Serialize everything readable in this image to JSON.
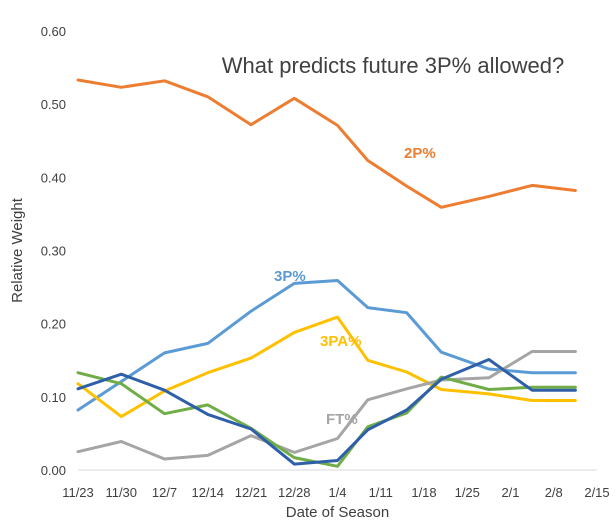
{
  "chart_data": {
    "type": "line",
    "title": "What predicts future 3P% allowed?",
    "xlabel": "Date of Season",
    "ylabel": "Relative Weight",
    "x": [
      "11/23",
      "11/30",
      "12/7",
      "12/14",
      "12/21",
      "12/28",
      "1/4",
      "1/11",
      "1/18",
      "1/25",
      "2/1",
      "2/8",
      "2/15"
    ],
    "ylim": [
      0,
      0.6
    ],
    "yticks": [
      "0.00",
      "0.10",
      "0.20",
      "0.30",
      "0.40",
      "0.50",
      "0.60"
    ],
    "grid": false,
    "series": [
      {
        "name": "2P%",
        "color": "#ED7D31",
        "x": [
          0,
          1,
          2,
          3,
          4,
          5,
          6,
          6.7,
          7.6,
          8.4,
          9.5,
          10.5,
          11.5
        ],
        "values": [
          0.533,
          0.523,
          0.532,
          0.51,
          0.472,
          0.508,
          0.471,
          0.423,
          0.388,
          0.359,
          0.374,
          0.389,
          0.382
        ]
      },
      {
        "name": "3P%",
        "color": "#5B9BD5",
        "x": [
          0,
          1,
          2,
          3,
          4,
          5,
          6,
          6.7,
          7.6,
          8.4,
          9.5,
          10.5,
          11.5
        ],
        "values": [
          0.082,
          0.121,
          0.16,
          0.173,
          0.217,
          0.255,
          0.259,
          0.222,
          0.215,
          0.161,
          0.138,
          0.133,
          0.133
        ]
      },
      {
        "name": "3PA%",
        "color": "#FFC000",
        "x": [
          0,
          1,
          2,
          3,
          4,
          5,
          6,
          6.7,
          7.6,
          8.4,
          9.5,
          10.5,
          11.5
        ],
        "values": [
          0.118,
          0.073,
          0.108,
          0.133,
          0.153,
          0.188,
          0.209,
          0.15,
          0.134,
          0.11,
          0.104,
          0.095,
          0.095
        ]
      },
      {
        "name": "FT%",
        "color": "#A5A5A5",
        "x": [
          0,
          1,
          2,
          3,
          4,
          5,
          6,
          6.7,
          7.6,
          8.4,
          9.5,
          10.5,
          11.5
        ],
        "values": [
          0.025,
          0.039,
          0.015,
          0.02,
          0.047,
          0.024,
          0.043,
          0.096,
          0.111,
          0.123,
          0.126,
          0.162,
          0.162
        ]
      },
      {
        "name": "",
        "color": "#70AD47",
        "x": [
          0,
          1,
          2,
          3,
          4,
          5,
          6,
          6.7,
          7.6,
          8.4,
          9.5,
          10.5,
          11.5
        ],
        "values": [
          0.133,
          0.118,
          0.077,
          0.089,
          0.057,
          0.017,
          0.005,
          0.059,
          0.078,
          0.127,
          0.11,
          0.113,
          0.113
        ]
      },
      {
        "name": "",
        "color": "#2E5FA8",
        "x": [
          0,
          1,
          2,
          3,
          4,
          5,
          6,
          6.7,
          7.6,
          8.4,
          9.5,
          10.5,
          11.5
        ],
        "values": [
          0.111,
          0.131,
          0.109,
          0.076,
          0.056,
          0.008,
          0.013,
          0.055,
          0.082,
          0.124,
          0.151,
          0.109,
          0.109
        ]
      }
    ],
    "annotations": [
      {
        "text": "2P%",
        "series": 0,
        "color": "#ED7D31"
      },
      {
        "text": "3P%",
        "series": 1,
        "color": "#5B9BD5"
      },
      {
        "text": "3PA%",
        "series": 2,
        "color": "#FFC000"
      },
      {
        "text": "FT%",
        "series": 3,
        "color": "#A5A5A5"
      }
    ]
  }
}
